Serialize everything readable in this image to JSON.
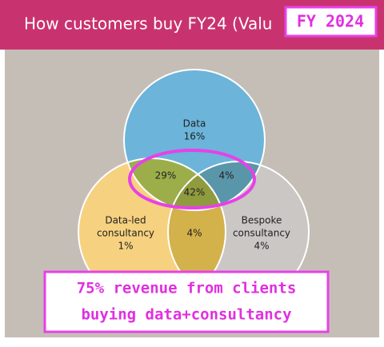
{
  "header": {
    "title": "How customers buy FY24 (Valu",
    "badge": "FY 2024"
  },
  "regions": {
    "data": [
      "Data",
      "16%"
    ],
    "data_and_data_led": [
      "29%"
    ],
    "data_and_bespoke": [
      "4%"
    ],
    "all_three": [
      "42%"
    ],
    "data_led": [
      "Data-led",
      "consultancy",
      "1%"
    ],
    "data_led_and_bespoke": [
      "4%"
    ],
    "bespoke": [
      "Bespoke",
      "consultancy",
      "4%"
    ]
  },
  "callout": [
    "75% revenue from clients",
    "buying data+consultancy"
  ]
}
